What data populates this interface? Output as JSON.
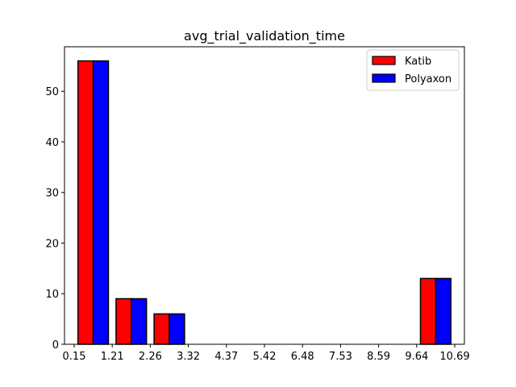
{
  "chart_data": {
    "type": "bar",
    "title": "avg_trial_validation_time",
    "xlabel": "",
    "ylabel": "",
    "bin_edges": [
      0.15,
      1.21,
      2.26,
      3.32,
      4.37,
      5.42,
      6.48,
      7.53,
      8.59,
      9.64,
      10.69
    ],
    "x_tick_labels": [
      "0.15",
      "1.21",
      "2.26",
      "3.32",
      "4.37",
      "5.42",
      "6.48",
      "7.53",
      "8.59",
      "9.64",
      "10.69"
    ],
    "y_ticks": [
      0,
      10,
      20,
      30,
      40,
      50
    ],
    "ylim": [
      0,
      58.8
    ],
    "grid": false,
    "legend_position": "top-right",
    "series": [
      {
        "name": "Katib",
        "color": "#ff0000",
        "values": [
          56,
          9,
          6,
          0,
          0,
          0,
          0,
          0,
          0,
          13
        ]
      },
      {
        "name": "Polyaxon",
        "color": "#0000ff",
        "values": [
          56,
          9,
          6,
          0,
          0,
          0,
          0,
          0,
          0,
          13
        ]
      }
    ]
  }
}
